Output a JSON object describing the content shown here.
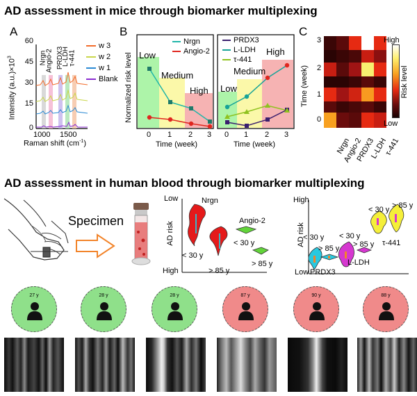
{
  "titles": {
    "mice": "AD assessment in mice through biomarker multiplexing",
    "human": "AD assessment in human blood through biomarker multiplexing"
  },
  "panel_labels": {
    "a": "A",
    "b": "B",
    "c": "C"
  },
  "panelA": {
    "ylabel": "Intensity (a.u.)×10",
    "ylabel_exp": "3",
    "xlabel": "Raman shift (cm",
    "xlabel_sup": "-1",
    "xlabel_close": ")",
    "yticks": [
      "0",
      "15",
      "30",
      "45",
      "60"
    ],
    "xticks": [
      "1000",
      "1500"
    ],
    "peaks": [
      "Nrgn",
      "Angio-2",
      "PRDX3",
      "L-LDH",
      "τ-441"
    ],
    "legend": [
      {
        "name": "w 3",
        "color": "#f26b2a"
      },
      {
        "name": "w 2",
        "color": "#c9d64a"
      },
      {
        "name": "w 1",
        "color": "#2a8ad4"
      },
      {
        "name": "Blank",
        "color": "#8a2bd0"
      }
    ]
  },
  "panelB": {
    "ylabel": "Normalized risk level",
    "xlabel": "Time (week)",
    "zones": [
      "Low",
      "Medium",
      "High"
    ],
    "zones_right": [
      "Low",
      "Medium",
      "High"
    ],
    "xticks": [
      "0",
      "1",
      "2",
      "3"
    ],
    "left_legend": [
      {
        "name": "Nrgn",
        "color": "#1f7a6a"
      },
      {
        "name": "Angio-2",
        "color": "#e0261f"
      }
    ],
    "right_legend": [
      {
        "name": "PRDX3",
        "color": "#3a1f6e"
      },
      {
        "name": "L-LDH",
        "color": "#16a398"
      },
      {
        "name": "τ-441",
        "color": "#8fc21f"
      }
    ]
  },
  "panelC": {
    "ylabel": "Time (week)",
    "yticks": [
      "0",
      "1",
      "2",
      "3"
    ],
    "columns": [
      "Nrgn",
      "Angio-2",
      "PRDX3",
      "L-LDH",
      "τ-441"
    ],
    "cbar_high": "High",
    "cbar_low": "Low",
    "cbar_label": "Risk level"
  },
  "human": {
    "specimen": "Specimen",
    "left_axis": {
      "ylabel": "AD risk",
      "low": "Low",
      "high": "High"
    },
    "right_axis": {
      "ylabel": "AD risk",
      "low": "Low",
      "high": "High"
    },
    "violin_labels": {
      "nrgn": "Nrgn",
      "angio": "Angio-2",
      "nrgn_young": "< 30 y",
      "nrgn_old": "> 85 y",
      "angio_young": "< 30 y",
      "angio_old": "> 85 y",
      "prdx3": "PRDX3",
      "prdx3_young": "< 30 y",
      "prdx3_old": "> 85 y",
      "lldh": "L-LDH",
      "lldh_young": "< 30 y",
      "lldh_old": "> 85 y",
      "tau": "τ-441",
      "tau_young": "< 30 y",
      "tau_old": "> 85 y"
    },
    "patients": [
      {
        "age": "27 y",
        "color": "#8fe08a"
      },
      {
        "age": "28 y",
        "color": "#8fe08a"
      },
      {
        "age": "28 y",
        "color": "#8fe08a"
      },
      {
        "age": "87 y",
        "color": "#f08a8a"
      },
      {
        "age": "90 y",
        "color": "#f08a8a"
      },
      {
        "age": "88 y",
        "color": "#f08a8a"
      }
    ]
  }
}
